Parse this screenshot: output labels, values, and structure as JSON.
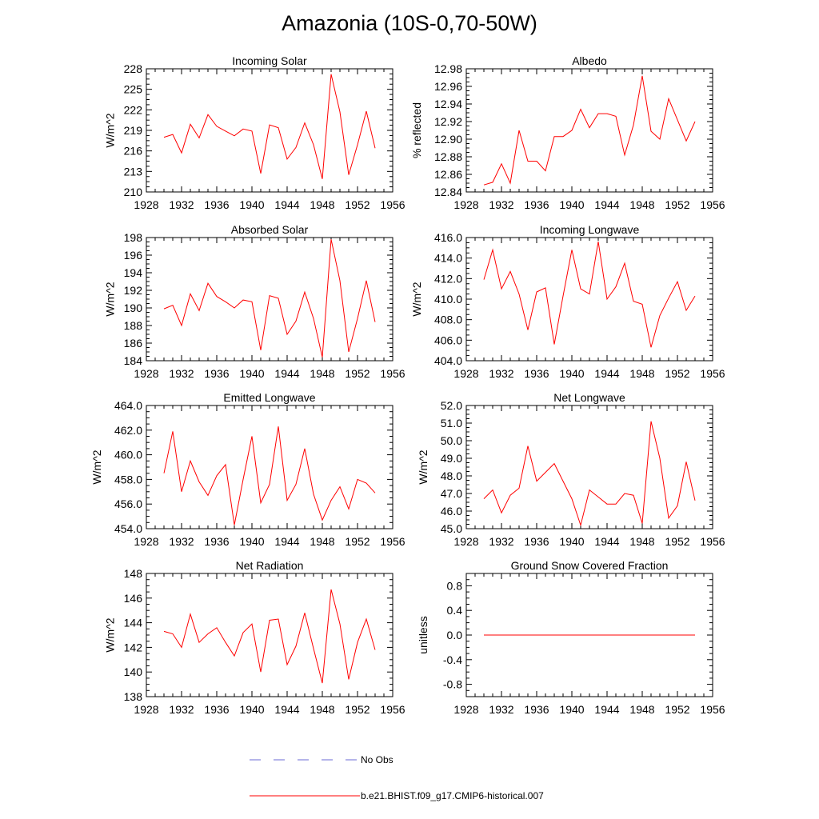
{
  "title": "Amazonia (10S-0,70-50W)",
  "colors": {
    "model": "#ff0000",
    "obs": "#6b6bd6",
    "axis": "#000000"
  },
  "legend": {
    "obs_label": "No Obs",
    "model_label": "b.e21.BHIST.f09_g17.CMIP6-historical.007"
  },
  "chart_data": [
    {
      "type": "line",
      "title": "Incoming Solar",
      "xlabel": "",
      "ylabel": "W/m^2",
      "xlim": [
        1928,
        1956
      ],
      "ylim": [
        210,
        228
      ],
      "xticks": [
        1928,
        1932,
        1936,
        1940,
        1944,
        1948,
        1952,
        1956
      ],
      "xtick_labels": [
        "1928",
        "1932",
        "1936",
        "1940",
        "1944",
        "1948",
        "1952",
        "1956"
      ],
      "yticks": [
        210,
        213,
        216,
        219,
        222,
        225,
        228
      ],
      "ytick_labels": [
        "210",
        "213",
        "216",
        "219",
        "222",
        "225",
        "228"
      ],
      "x": [
        1930,
        1931,
        1932,
        1933,
        1934,
        1935,
        1936,
        1937,
        1938,
        1939,
        1940,
        1941,
        1942,
        1943,
        1944,
        1945,
        1946,
        1947,
        1948,
        1949,
        1950,
        1951,
        1952,
        1953,
        1954
      ],
      "series": [
        {
          "name": "b.e21.BHIST.f09_g17.CMIP6-historical.007",
          "values": [
            218.0,
            218.4,
            215.7,
            219.9,
            217.9,
            221.3,
            219.6,
            218.9,
            218.2,
            219.2,
            218.9,
            212.7,
            219.8,
            219.4,
            214.8,
            216.5,
            220.1,
            216.9,
            211.9,
            227.2,
            221.7,
            212.5,
            216.9,
            221.8,
            216.4
          ]
        }
      ]
    },
    {
      "type": "line",
      "title": "Albedo",
      "xlabel": "",
      "ylabel": "% reflected",
      "xlim": [
        1928,
        1956
      ],
      "ylim": [
        12.84,
        12.98
      ],
      "xticks": [
        1928,
        1932,
        1936,
        1940,
        1944,
        1948,
        1952,
        1956
      ],
      "xtick_labels": [
        "1928",
        "1932",
        "1936",
        "1940",
        "1944",
        "1948",
        "1952",
        "1956"
      ],
      "yticks": [
        12.84,
        12.86,
        12.88,
        12.9,
        12.92,
        12.94,
        12.96,
        12.98
      ],
      "ytick_labels": [
        "12.84",
        "12.86",
        "12.88",
        "12.90",
        "12.92",
        "12.94",
        "12.96",
        "12.98"
      ],
      "x": [
        1930,
        1931,
        1932,
        1933,
        1934,
        1935,
        1936,
        1937,
        1938,
        1939,
        1940,
        1941,
        1942,
        1943,
        1944,
        1945,
        1946,
        1947,
        1948,
        1949,
        1950,
        1951,
        1952,
        1953,
        1954
      ],
      "series": [
        {
          "name": "b.e21.BHIST.f09_g17.CMIP6-historical.007",
          "values": [
            12.848,
            12.851,
            12.872,
            12.85,
            12.91,
            12.875,
            12.875,
            12.864,
            12.903,
            12.903,
            12.91,
            12.934,
            12.913,
            12.929,
            12.929,
            12.926,
            12.882,
            12.916,
            12.972,
            12.909,
            12.9,
            12.946,
            12.922,
            12.898,
            12.92
          ]
        }
      ]
    },
    {
      "type": "line",
      "title": "Absorbed Solar",
      "xlabel": "",
      "ylabel": "W/m^2",
      "xlim": [
        1928,
        1956
      ],
      "ylim": [
        184,
        198
      ],
      "xticks": [
        1928,
        1932,
        1936,
        1940,
        1944,
        1948,
        1952,
        1956
      ],
      "xtick_labels": [
        "1928",
        "1932",
        "1936",
        "1940",
        "1944",
        "1948",
        "1952",
        "1956"
      ],
      "yticks": [
        184,
        186,
        188,
        190,
        192,
        194,
        196,
        198
      ],
      "ytick_labels": [
        "184",
        "186",
        "188",
        "190",
        "192",
        "194",
        "196",
        "198"
      ],
      "x": [
        1930,
        1931,
        1932,
        1933,
        1934,
        1935,
        1936,
        1937,
        1938,
        1939,
        1940,
        1941,
        1942,
        1943,
        1944,
        1945,
        1946,
        1947,
        1948,
        1949,
        1950,
        1951,
        1952,
        1953,
        1954
      ],
      "series": [
        {
          "name": "b.e21.BHIST.f09_g17.CMIP6-historical.007",
          "values": [
            189.9,
            190.3,
            188.0,
            191.6,
            189.7,
            192.8,
            191.3,
            190.7,
            190.0,
            190.9,
            190.7,
            185.2,
            191.4,
            191.1,
            187.0,
            188.5,
            191.8,
            188.8,
            184.4,
            197.8,
            193.1,
            185.0,
            188.8,
            193.1,
            188.4
          ]
        }
      ]
    },
    {
      "type": "line",
      "title": "Incoming Longwave",
      "xlabel": "",
      "ylabel": "W/m^2",
      "xlim": [
        1928,
        1956
      ],
      "ylim": [
        404,
        416
      ],
      "xticks": [
        1928,
        1932,
        1936,
        1940,
        1944,
        1948,
        1952,
        1956
      ],
      "xtick_labels": [
        "1928",
        "1932",
        "1936",
        "1940",
        "1944",
        "1948",
        "1952",
        "1956"
      ],
      "yticks": [
        404,
        406,
        408,
        410,
        412,
        414,
        416
      ],
      "ytick_labels": [
        "404.0",
        "406.0",
        "408.0",
        "410.0",
        "412.0",
        "414.0",
        "416.0"
      ],
      "x": [
        1930,
        1931,
        1932,
        1933,
        1934,
        1935,
        1936,
        1937,
        1938,
        1939,
        1940,
        1941,
        1942,
        1943,
        1944,
        1945,
        1946,
        1947,
        1948,
        1949,
        1950,
        1951,
        1952,
        1953,
        1954
      ],
      "series": [
        {
          "name": "b.e21.BHIST.f09_g17.CMIP6-historical.007",
          "values": [
            411.9,
            414.8,
            411.0,
            412.7,
            410.5,
            407.0,
            410.7,
            411.1,
            405.6,
            410.3,
            414.8,
            411.0,
            410.5,
            415.6,
            410.0,
            411.2,
            413.5,
            409.8,
            409.5,
            405.3,
            408.4,
            410.1,
            411.7,
            408.9,
            410.3
          ]
        }
      ]
    },
    {
      "type": "line",
      "title": "Emitted Longwave",
      "xlabel": "",
      "ylabel": "W/m^2",
      "xlim": [
        1928,
        1956
      ],
      "ylim": [
        454,
        464
      ],
      "xticks": [
        1928,
        1932,
        1936,
        1940,
        1944,
        1948,
        1952,
        1956
      ],
      "xtick_labels": [
        "1928",
        "1932",
        "1936",
        "1940",
        "1944",
        "1948",
        "1952",
        "1956"
      ],
      "yticks": [
        454,
        456,
        458,
        460,
        462,
        464
      ],
      "ytick_labels": [
        "454.0",
        "456.0",
        "458.0",
        "460.0",
        "462.0",
        "464.0"
      ],
      "x": [
        1930,
        1931,
        1932,
        1933,
        1934,
        1935,
        1936,
        1937,
        1938,
        1939,
        1940,
        1941,
        1942,
        1943,
        1944,
        1945,
        1946,
        1947,
        1948,
        1949,
        1950,
        1951,
        1952,
        1953,
        1954
      ],
      "series": [
        {
          "name": "b.e21.BHIST.f09_g17.CMIP6-historical.007",
          "values": [
            458.5,
            461.9,
            457.0,
            459.5,
            457.8,
            456.7,
            458.3,
            459.2,
            454.3,
            458.0,
            461.5,
            456.1,
            457.6,
            462.3,
            456.3,
            457.6,
            460.5,
            456.8,
            454.7,
            456.3,
            457.4,
            455.6,
            458.0,
            457.7,
            456.9
          ]
        }
      ]
    },
    {
      "type": "line",
      "title": "Net Longwave",
      "xlabel": "",
      "ylabel": "W/m^2",
      "xlim": [
        1928,
        1956
      ],
      "ylim": [
        45,
        52
      ],
      "xticks": [
        1928,
        1932,
        1936,
        1940,
        1944,
        1948,
        1952,
        1956
      ],
      "xtick_labels": [
        "1928",
        "1932",
        "1936",
        "1940",
        "1944",
        "1948",
        "1952",
        "1956"
      ],
      "yticks": [
        45,
        46,
        47,
        48,
        49,
        50,
        51,
        52
      ],
      "ytick_labels": [
        "45.0",
        "46.0",
        "47.0",
        "48.0",
        "49.0",
        "50.0",
        "51.0",
        "52.0"
      ],
      "x": [
        1930,
        1931,
        1932,
        1933,
        1934,
        1935,
        1936,
        1937,
        1938,
        1939,
        1940,
        1941,
        1942,
        1943,
        1944,
        1945,
        1946,
        1947,
        1948,
        1949,
        1950,
        1951,
        1952,
        1953,
        1954
      ],
      "series": [
        {
          "name": "b.e21.BHIST.f09_g17.CMIP6-historical.007",
          "values": [
            46.7,
            47.2,
            45.9,
            46.9,
            47.3,
            49.7,
            47.7,
            48.2,
            48.7,
            47.7,
            46.7,
            45.2,
            47.2,
            46.8,
            46.4,
            46.4,
            47.0,
            46.9,
            45.3,
            51.1,
            49.0,
            45.6,
            46.3,
            48.8,
            46.6
          ]
        }
      ]
    },
    {
      "type": "line",
      "title": "Net Radiation",
      "xlabel": "",
      "ylabel": "W/m^2",
      "xlim": [
        1928,
        1956
      ],
      "ylim": [
        138,
        148
      ],
      "xticks": [
        1928,
        1932,
        1936,
        1940,
        1944,
        1948,
        1952,
        1956
      ],
      "xtick_labels": [
        "1928",
        "1932",
        "1936",
        "1940",
        "1944",
        "1948",
        "1952",
        "1956"
      ],
      "yticks": [
        138,
        140,
        142,
        144,
        146,
        148
      ],
      "ytick_labels": [
        "138",
        "140",
        "142",
        "144",
        "146",
        "148"
      ],
      "x": [
        1930,
        1931,
        1932,
        1933,
        1934,
        1935,
        1936,
        1937,
        1938,
        1939,
        1940,
        1941,
        1942,
        1943,
        1944,
        1945,
        1946,
        1947,
        1948,
        1949,
        1950,
        1951,
        1952,
        1953,
        1954
      ],
      "series": [
        {
          "name": "b.e21.BHIST.f09_g17.CMIP6-historical.007",
          "values": [
            143.3,
            143.1,
            142.0,
            144.7,
            142.4,
            143.1,
            143.6,
            142.4,
            141.3,
            143.2,
            143.9,
            140.0,
            144.2,
            144.3,
            140.6,
            142.1,
            144.8,
            141.9,
            139.1,
            146.7,
            143.9,
            139.4,
            142.4,
            144.3,
            141.8
          ]
        }
      ]
    },
    {
      "type": "line",
      "title": "Ground Snow Covered Fraction",
      "xlabel": "",
      "ylabel": "unitless",
      "xlim": [
        1928,
        1956
      ],
      "ylim": [
        -1.0,
        1.0
      ],
      "xticks": [
        1928,
        1932,
        1936,
        1940,
        1944,
        1948,
        1952,
        1956
      ],
      "xtick_labels": [
        "1928",
        "1932",
        "1936",
        "1940",
        "1944",
        "1948",
        "1952",
        "1956"
      ],
      "yticks": [
        -0.8,
        -0.4,
        0.0,
        0.4,
        0.8
      ],
      "ytick_labels": [
        "-0.8",
        "-0.4",
        "0.0",
        "0.4",
        "0.8"
      ],
      "x": [
        1930,
        1931,
        1932,
        1933,
        1934,
        1935,
        1936,
        1937,
        1938,
        1939,
        1940,
        1941,
        1942,
        1943,
        1944,
        1945,
        1946,
        1947,
        1948,
        1949,
        1950,
        1951,
        1952,
        1953,
        1954
      ],
      "series": [
        {
          "name": "b.e21.BHIST.f09_g17.CMIP6-historical.007",
          "values": [
            0,
            0,
            0,
            0,
            0,
            0,
            0,
            0,
            0,
            0,
            0,
            0,
            0,
            0,
            0,
            0,
            0,
            0,
            0,
            0,
            0,
            0,
            0,
            0,
            0
          ]
        }
      ]
    }
  ]
}
